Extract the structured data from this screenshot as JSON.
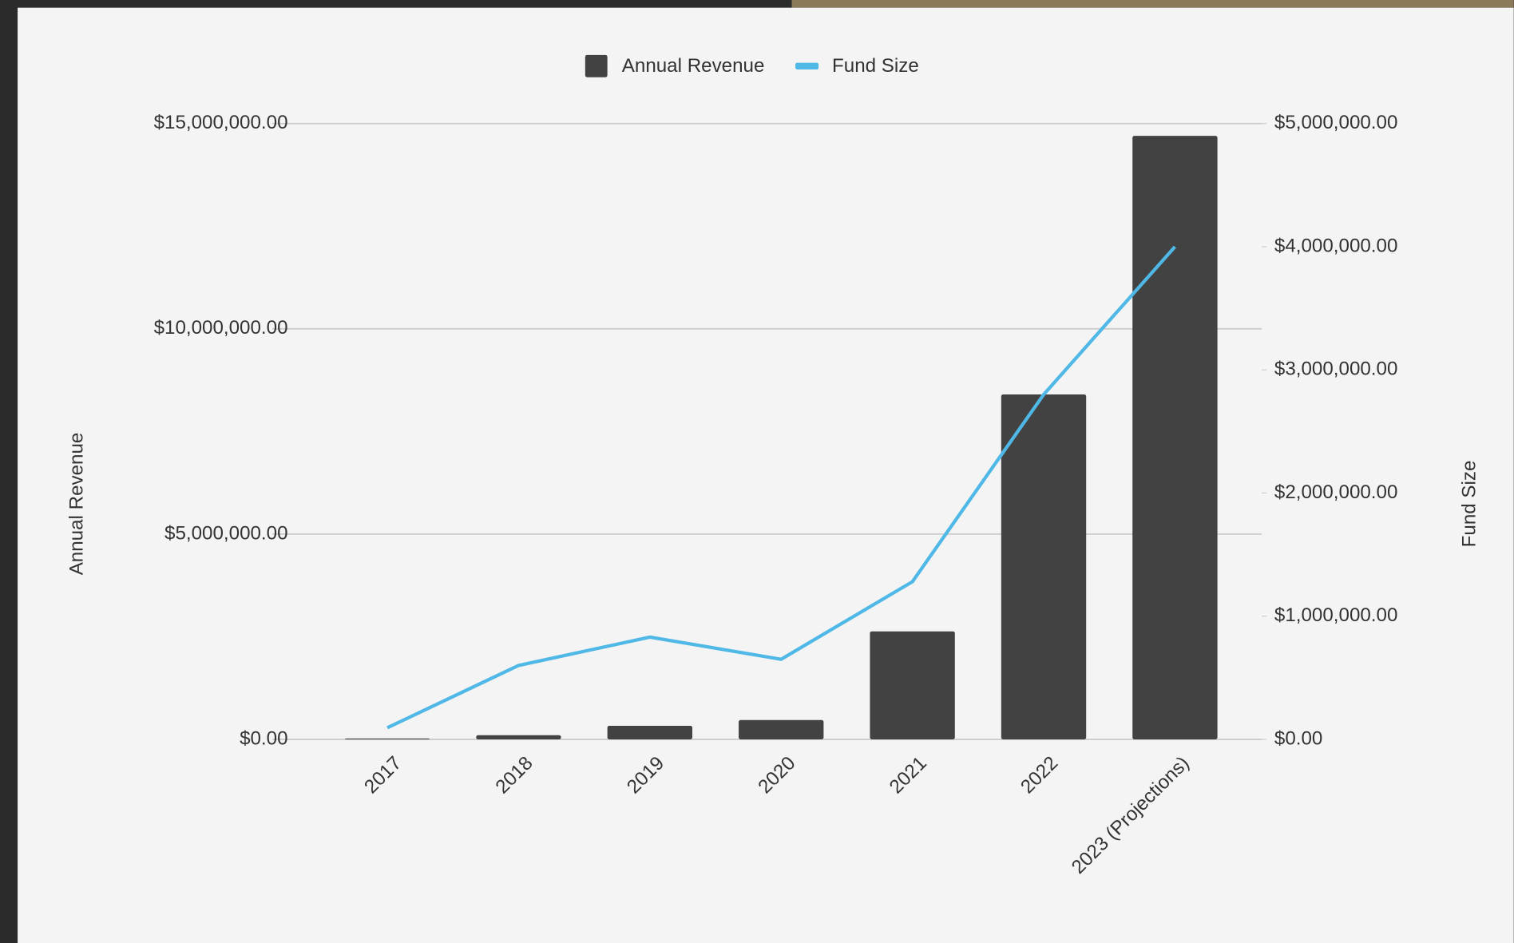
{
  "chart_data": {
    "type": "combo",
    "categories": [
      "2017",
      "2018",
      "2019",
      "2020",
      "2021",
      "2022",
      "2023 (Projections)"
    ],
    "series": [
      {
        "name": "Annual Revenue",
        "type": "bar",
        "color": "#424242",
        "values": [
          20000,
          100000,
          330000,
          470000,
          2630000,
          8400000,
          14700000
        ]
      },
      {
        "name": "Fund Size",
        "type": "line",
        "axis": "y2",
        "color": "#4fb8e6",
        "values": [
          94000,
          600000,
          830000,
          650000,
          1280000,
          2800000,
          4000000
        ]
      }
    ],
    "y_label": "Annual Revenue",
    "y2_label": "Fund Size",
    "ylim": [
      0,
      15000000
    ],
    "yticks": [
      {
        "value": 0,
        "label": "$0.00"
      },
      {
        "value": 5000000,
        "label": "$5,000,000.00"
      },
      {
        "value": 10000000,
        "label": "$10,000,000.00"
      },
      {
        "value": 15000000,
        "label": "$15,000,000.00"
      }
    ],
    "y2lim": [
      0,
      5000000
    ],
    "y2ticks": [
      {
        "value": 0,
        "label": "$0.00"
      },
      {
        "value": 1000000,
        "label": "$1,000,000.00"
      },
      {
        "value": 2000000,
        "label": "$2,000,000.00"
      },
      {
        "value": 3000000,
        "label": "$3,000,000.00"
      },
      {
        "value": 4000000,
        "label": "$4,000,000.00"
      },
      {
        "value": 5000000,
        "label": "$5,000,000.00"
      }
    ],
    "grid": true,
    "legend": "top"
  }
}
